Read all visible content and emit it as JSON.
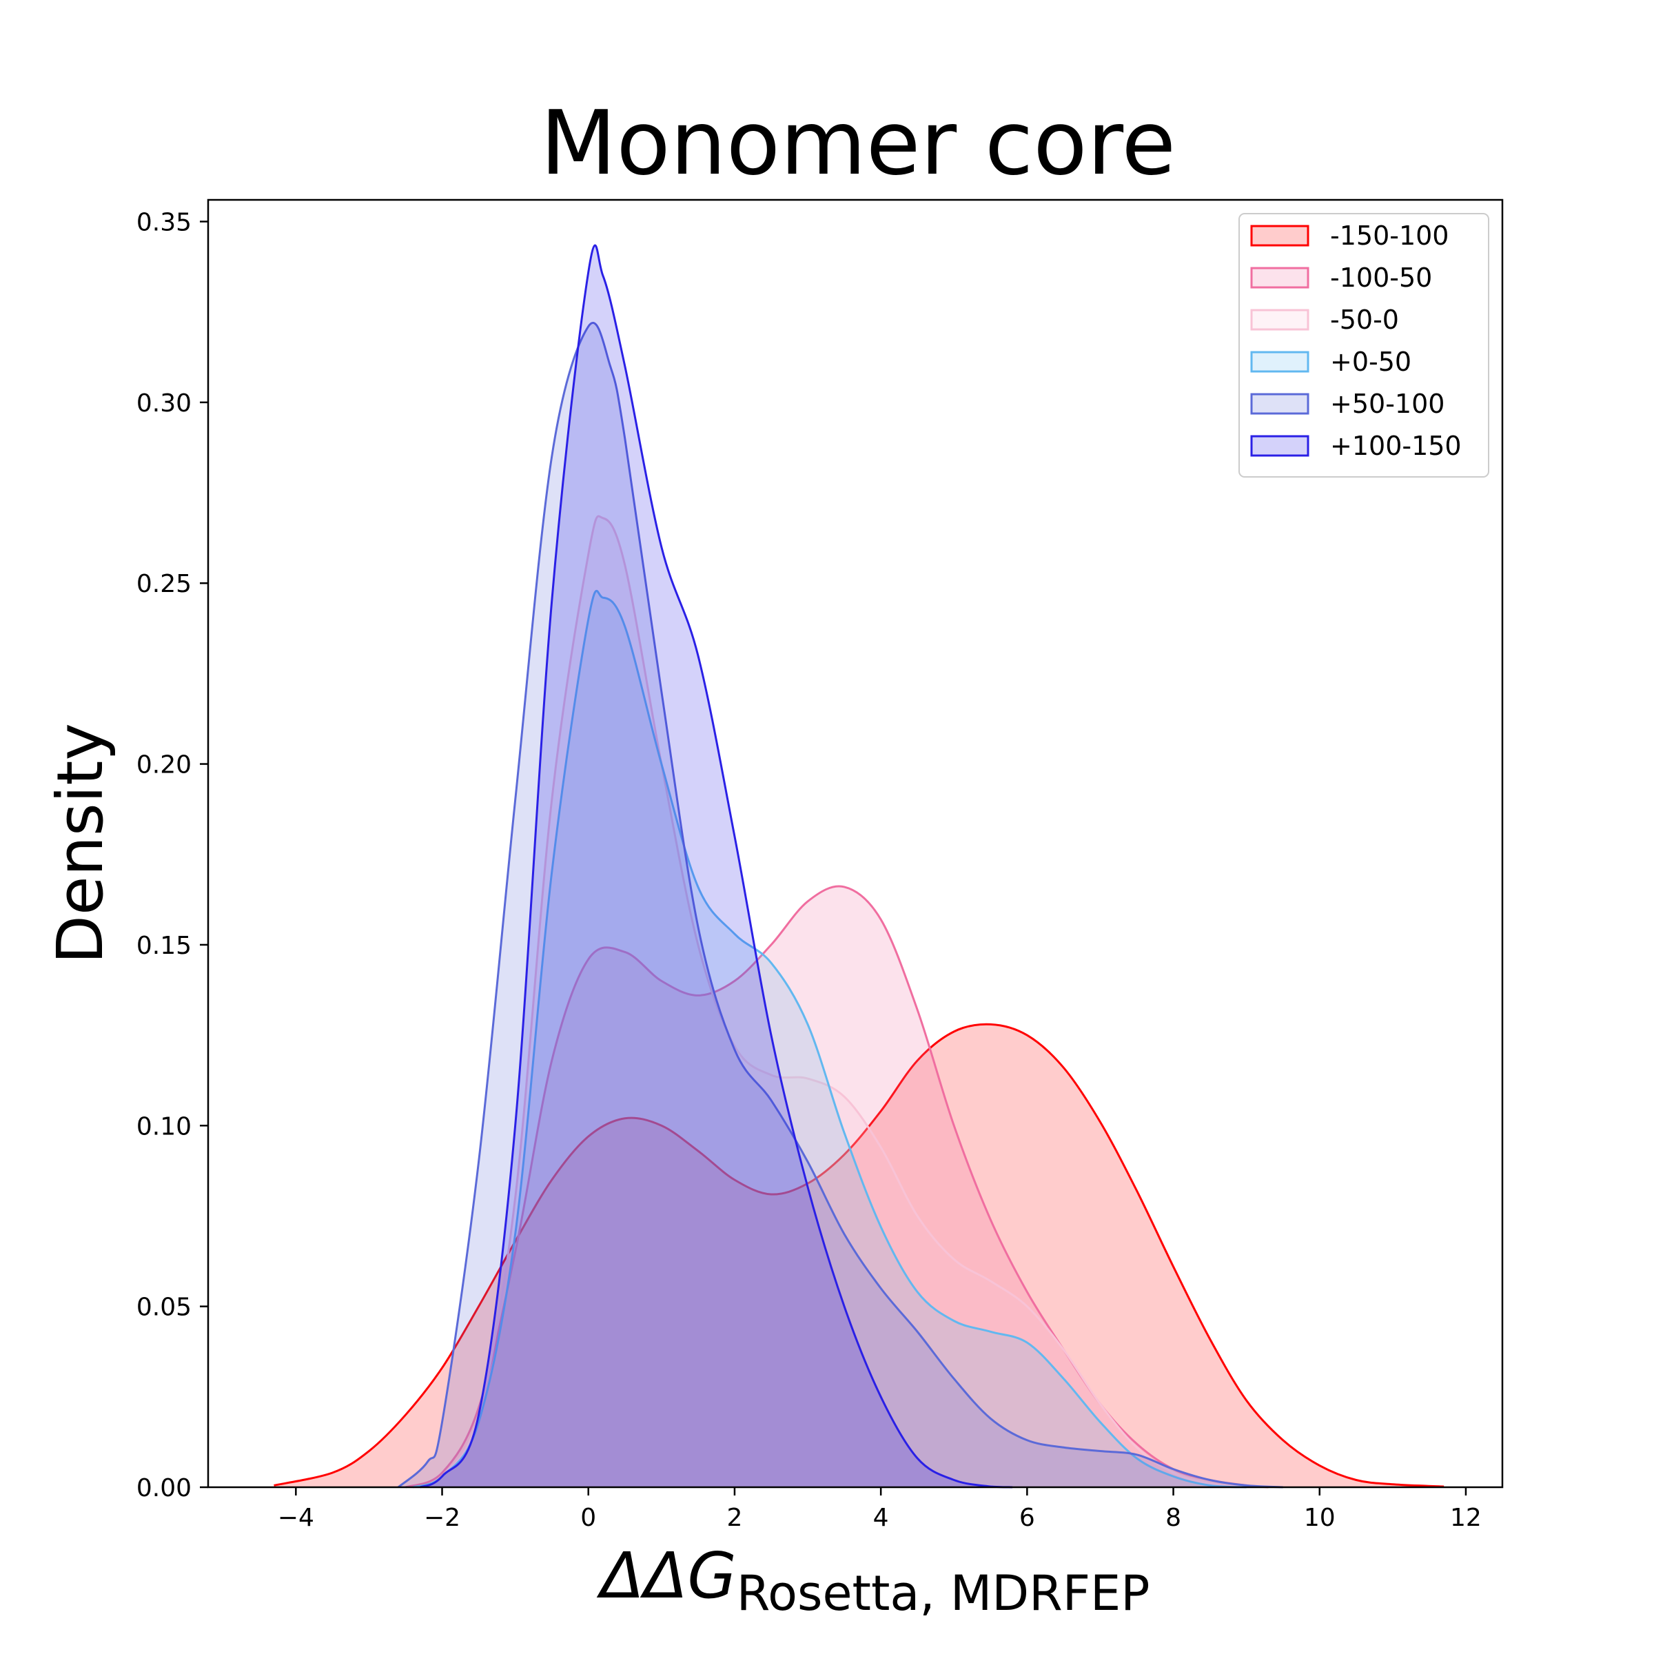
{
  "chart_data": {
    "type": "area",
    "title": "Monomer core",
    "xlabel": "ΔΔG",
    "xlabel_subscript": "Rosetta, MDRFEP",
    "ylabel": "Density",
    "xlim": [
      -5.2,
      12.5
    ],
    "ylim": [
      0,
      0.356
    ],
    "xticks": [
      -4,
      -2,
      0,
      2,
      4,
      6,
      8,
      10,
      12
    ],
    "xtick_labels": [
      "−4",
      "−2",
      "0",
      "2",
      "4",
      "6",
      "8",
      "10",
      "12"
    ],
    "yticks": [
      0.0,
      0.05,
      0.1,
      0.15,
      0.2,
      0.25,
      0.3,
      0.35
    ],
    "ytick_labels": [
      "0.00",
      "0.05",
      "0.10",
      "0.15",
      "0.20",
      "0.25",
      "0.30",
      "0.35"
    ],
    "grid": false,
    "legend_position": "top-right",
    "series": [
      {
        "name": "-150-100",
        "color": "#ff0000",
        "fill_opacity": 0.2,
        "points": [
          [
            -4.3,
            0.0005
          ],
          [
            -3.5,
            0.004
          ],
          [
            -3,
            0.01
          ],
          [
            -2.5,
            0.02
          ],
          [
            -2,
            0.033
          ],
          [
            -1.5,
            0.05
          ],
          [
            -1,
            0.068
          ],
          [
            -0.5,
            0.085
          ],
          [
            0,
            0.097
          ],
          [
            0.5,
            0.102
          ],
          [
            1,
            0.1
          ],
          [
            1.5,
            0.093
          ],
          [
            2,
            0.085
          ],
          [
            2.5,
            0.081
          ],
          [
            3,
            0.084
          ],
          [
            3.5,
            0.092
          ],
          [
            4,
            0.104
          ],
          [
            4.5,
            0.118
          ],
          [
            5,
            0.126
          ],
          [
            5.5,
            0.128
          ],
          [
            6,
            0.125
          ],
          [
            6.5,
            0.116
          ],
          [
            7,
            0.101
          ],
          [
            7.5,
            0.082
          ],
          [
            8,
            0.061
          ],
          [
            8.5,
            0.041
          ],
          [
            9,
            0.024
          ],
          [
            9.5,
            0.013
          ],
          [
            10,
            0.006
          ],
          [
            10.5,
            0.002
          ],
          [
            11,
            0.0008
          ],
          [
            11.7,
            0.0002
          ]
        ]
      },
      {
        "name": "-100-50",
        "color": "#f06ea0",
        "fill_opacity": 0.2,
        "points": [
          [
            -2.5,
            0
          ],
          [
            -2,
            0.004
          ],
          [
            -1.5,
            0.022
          ],
          [
            -1,
            0.065
          ],
          [
            -0.5,
            0.118
          ],
          [
            0,
            0.146
          ],
          [
            0.5,
            0.148
          ],
          [
            1,
            0.14
          ],
          [
            1.5,
            0.136
          ],
          [
            2,
            0.14
          ],
          [
            2.5,
            0.15
          ],
          [
            3,
            0.162
          ],
          [
            3.5,
            0.166
          ],
          [
            4,
            0.157
          ],
          [
            4.5,
            0.132
          ],
          [
            5,
            0.1
          ],
          [
            5.5,
            0.074
          ],
          [
            6,
            0.054
          ],
          [
            6.5,
            0.038
          ],
          [
            7,
            0.023
          ],
          [
            7.5,
            0.012
          ],
          [
            8,
            0.005
          ],
          [
            8.5,
            0.002
          ],
          [
            9,
            0.0005
          ],
          [
            9.3,
            0
          ]
        ]
      },
      {
        "name": "-50-0",
        "color": "#f8c3d6",
        "fill_opacity": 0.2,
        "points": [
          [
            -2.3,
            0
          ],
          [
            -2,
            0.003
          ],
          [
            -1.5,
            0.02
          ],
          [
            -1,
            0.08
          ],
          [
            -0.5,
            0.19
          ],
          [
            0,
            0.258
          ],
          [
            0.2,
            0.268
          ],
          [
            0.5,
            0.255
          ],
          [
            1,
            0.2
          ],
          [
            1.5,
            0.15
          ],
          [
            2,
            0.122
          ],
          [
            2.5,
            0.114
          ],
          [
            3,
            0.113
          ],
          [
            3.5,
            0.108
          ],
          [
            4,
            0.094
          ],
          [
            4.5,
            0.075
          ],
          [
            5,
            0.063
          ],
          [
            5.5,
            0.057
          ],
          [
            6,
            0.05
          ],
          [
            6.5,
            0.038
          ],
          [
            7,
            0.023
          ],
          [
            7.5,
            0.011
          ],
          [
            8,
            0.004
          ],
          [
            8.5,
            0.001
          ],
          [
            9,
            0
          ]
        ]
      },
      {
        "name": "+0-50",
        "color": "#62b8f0",
        "fill_opacity": 0.2,
        "points": [
          [
            -2.4,
            0
          ],
          [
            -2,
            0.003
          ],
          [
            -1.5,
            0.018
          ],
          [
            -1,
            0.07
          ],
          [
            -0.5,
            0.17
          ],
          [
            0,
            0.24
          ],
          [
            0.2,
            0.246
          ],
          [
            0.5,
            0.238
          ],
          [
            1,
            0.2
          ],
          [
            1.5,
            0.166
          ],
          [
            2,
            0.153
          ],
          [
            2.5,
            0.145
          ],
          [
            3,
            0.128
          ],
          [
            3.5,
            0.098
          ],
          [
            4,
            0.072
          ],
          [
            4.5,
            0.054
          ],
          [
            5,
            0.046
          ],
          [
            5.5,
            0.043
          ],
          [
            6,
            0.04
          ],
          [
            6.5,
            0.03
          ],
          [
            7,
            0.018
          ],
          [
            7.5,
            0.008
          ],
          [
            8,
            0.003
          ],
          [
            8.5,
            0.0005
          ],
          [
            9,
            0
          ]
        ]
      },
      {
        "name": "+50-100",
        "color": "#5b6ad8",
        "fill_opacity": 0.2,
        "points": [
          [
            -2.6,
            0
          ],
          [
            -2.2,
            0.007
          ],
          [
            -2,
            0.018
          ],
          [
            -1.5,
            0.09
          ],
          [
            -1,
            0.19
          ],
          [
            -0.5,
            0.285
          ],
          [
            0,
            0.321
          ],
          [
            0.3,
            0.31
          ],
          [
            0.5,
            0.29
          ],
          [
            1,
            0.22
          ],
          [
            1.5,
            0.155
          ],
          [
            2,
            0.121
          ],
          [
            2.5,
            0.107
          ],
          [
            3,
            0.09
          ],
          [
            3.5,
            0.07
          ],
          [
            4,
            0.055
          ],
          [
            4.5,
            0.043
          ],
          [
            5,
            0.03
          ],
          [
            5.5,
            0.019
          ],
          [
            6,
            0.013
          ],
          [
            6.5,
            0.011
          ],
          [
            7,
            0.01
          ],
          [
            7.5,
            0.009
          ],
          [
            8,
            0.005
          ],
          [
            8.5,
            0.002
          ],
          [
            9,
            0.0005
          ],
          [
            9.5,
            0
          ]
        ]
      },
      {
        "name": "+100-150",
        "color": "#2a20e6",
        "fill_opacity": 0.2,
        "points": [
          [
            -2.3,
            0
          ],
          [
            -2,
            0.003
          ],
          [
            -1.5,
            0.02
          ],
          [
            -1,
            0.1
          ],
          [
            -0.5,
            0.245
          ],
          [
            0,
            0.336
          ],
          [
            0.2,
            0.335
          ],
          [
            0.5,
            0.31
          ],
          [
            1,
            0.26
          ],
          [
            1.5,
            0.23
          ],
          [
            2,
            0.18
          ],
          [
            2.5,
            0.125
          ],
          [
            3,
            0.083
          ],
          [
            3.5,
            0.05
          ],
          [
            4,
            0.025
          ],
          [
            4.5,
            0.008
          ],
          [
            5,
            0.002
          ],
          [
            5.5,
            0.0002
          ],
          [
            5.8,
            0
          ]
        ]
      }
    ]
  }
}
